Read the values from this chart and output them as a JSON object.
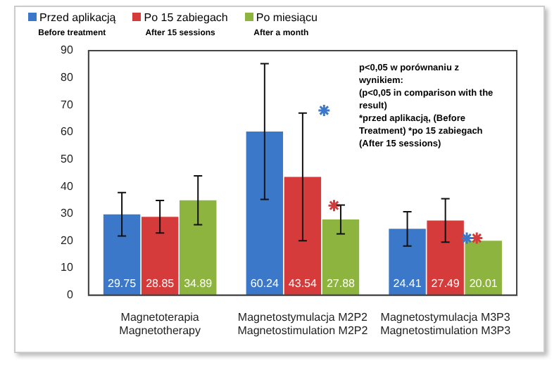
{
  "chart_data": {
    "type": "bar",
    "categories": [
      "Magnetoterapia\nMagnetotherapy",
      "Magnetostymulacja M2P2\nMagnetostimulation M2P2",
      "Magnetostymulacja M3P3\nMagnetostimulation M3P3"
    ],
    "series": [
      {
        "name": "Przed aplikacją\nBefore treatment",
        "color": "#3b78c9",
        "values": [
          29.75,
          60.24,
          24.41
        ],
        "value_labels": [
          "29.75",
          "60.24",
          "24.41"
        ],
        "errors": [
          8,
          25,
          6.3
        ]
      },
      {
        "name": "Po 15 zabiegach\nAfter 15 sessions",
        "color": "#d63b3b",
        "values": [
          28.85,
          43.54,
          27.49
        ],
        "value_labels": [
          "28.85",
          "43.54",
          "27.49"
        ],
        "errors": [
          6,
          23.5,
          8
        ]
      },
      {
        "name": "Po miesiącu\nAfter a month",
        "color": "#8db43e",
        "values": [
          34.89,
          27.88,
          20.01
        ],
        "value_labels": [
          "34.89",
          "27.88",
          "20.01"
        ],
        "errors": [
          9,
          5.3,
          null
        ]
      },
      {
        "type": "scatter",
        "marker": "cross",
        "color": "#3b78c9",
        "x": [
          "Magnetostymulacja M2P2\nMagnetostimulation M2P2",
          "Magnetostymulacja M3P3\nMagnetostimulation M3P3"
        ],
        "values": [
          68,
          21
        ]
      },
      {
        "type": "scatter",
        "marker": "cross",
        "color": "#d63b3b",
        "x": [
          "Magnetostymulacja M2P2\nMagnetostimulation M2P2",
          "Magnetostymulacja M3P3\nMagnetostimulation M3P3"
        ],
        "values": [
          33,
          21
        ]
      }
    ],
    "ylim": [
      0,
      90
    ],
    "yticks": [
      0,
      10,
      20,
      30,
      40,
      50,
      60,
      70,
      80,
      90
    ],
    "grid": false,
    "legend": "top",
    "annotations": [
      "p<0,05  w porównaniu z wynikiem:",
      "(p<0,05 in comparison with the result)",
      "*przed aplikacją, (Before Treatment)  *po 15 zabiegach (After 15 sessions)"
    ]
  }
}
